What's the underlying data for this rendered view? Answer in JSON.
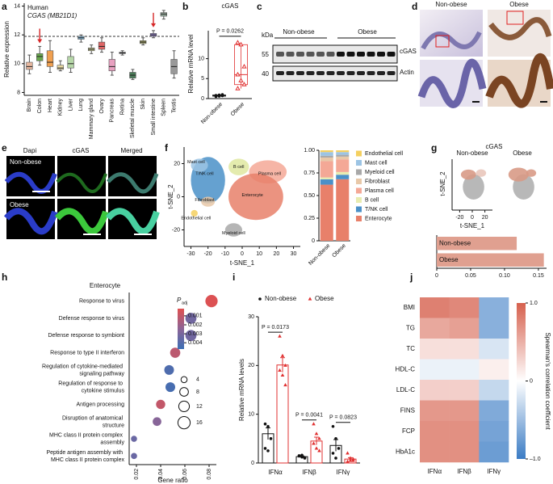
{
  "panel_labels": [
    "a",
    "b",
    "c",
    "d",
    "e",
    "f",
    "g",
    "h",
    "i",
    "j"
  ],
  "western_blot": {
    "unit": "kDa",
    "groups": [
      "Non-obese",
      "Obese"
    ],
    "markers": [
      55,
      40
    ],
    "bands": [
      "cGAS",
      "Actin"
    ]
  },
  "histology": {
    "groups": [
      "Non-obese",
      "Obese"
    ]
  },
  "immunofluorescence": {
    "channels": [
      "Dapi",
      "cGAS",
      "Merged"
    ],
    "groups": [
      "Non-obese",
      "Obese"
    ]
  },
  "chart_data": [
    {
      "type": "box",
      "title": "Human",
      "subtitle": "CGAS (MB21D1)",
      "y_label": "Relative expression",
      "categories": [
        "Brain",
        "Colon",
        "Heart",
        "Kidney",
        "Liver",
        "Lung",
        "Mammary gland",
        "Ovary",
        "Pancreas",
        "Retina",
        "Skeletal muscle",
        "Skin",
        "Small intestine",
        "Spleen",
        "Testis"
      ],
      "label_colors": [
        "#111111",
        "#d62728",
        "#111111",
        "#111111",
        "#111111",
        "#111111",
        "#111111",
        "#111111",
        "#111111",
        "#111111",
        "#111111",
        "#111111",
        "#d62728",
        "#111111",
        "#111111"
      ],
      "colors": [
        "#e8b8a0",
        "#6aa84f",
        "#f0a050",
        "#e8d8a0",
        "#b6d7a8",
        "#7fb3d5",
        "#c8c890",
        "#e06666",
        "#e8a0c0",
        "#d0d0e0",
        "#4a7c59",
        "#a0a060",
        "#8e7cc3",
        "#93a89a",
        "#999999"
      ],
      "low": [
        9.3,
        9.9,
        9.4,
        9.5,
        9.4,
        11.5,
        10.7,
        10.8,
        9.2,
        10.6,
        8.9,
        11.3,
        11.8,
        13.1,
        9.0
      ],
      "q1": [
        9.6,
        10.2,
        9.8,
        9.6,
        9.7,
        11.7,
        10.9,
        11.0,
        9.5,
        10.7,
        9.0,
        11.4,
        11.9,
        13.3,
        9.3
      ],
      "median": [
        9.8,
        10.5,
        10.1,
        9.7,
        10.0,
        11.8,
        11.0,
        11.2,
        9.8,
        10.75,
        9.2,
        11.5,
        12.0,
        13.45,
        9.8
      ],
      "q3": [
        10.1,
        10.7,
        10.9,
        9.9,
        10.5,
        11.9,
        11.1,
        11.5,
        10.3,
        10.8,
        9.4,
        11.6,
        12.1,
        13.55,
        10.3
      ],
      "high": [
        10.6,
        11.2,
        11.6,
        10.2,
        11.0,
        12.0,
        11.3,
        11.8,
        10.8,
        10.9,
        9.6,
        11.8,
        12.3,
        13.7,
        10.9
      ],
      "reference_line": 11.9,
      "ylim": [
        7.8,
        14.2
      ],
      "yticks": [
        8,
        10,
        12,
        14
      ]
    },
    {
      "type": "strip",
      "title": "cGAS",
      "y_label": "Relative mRNA level",
      "categories": [
        "Non-obese",
        "Obese"
      ],
      "colors": [
        "#111111",
        "#e03030"
      ],
      "points": [
        [
          0.5,
          0.6,
          0.7,
          0.8,
          0.9,
          1.0
        ],
        [
          14,
          13.5,
          8,
          6,
          4.5,
          3.5,
          2.5
        ]
      ],
      "low": [
        0.5,
        2.5
      ],
      "q1": [
        0.6,
        3.5
      ],
      "median": [
        0.75,
        6
      ],
      "q3": [
        0.9,
        13.5
      ],
      "high": [
        1.0,
        14
      ],
      "annotation": "P = 0.0262",
      "ylim": [
        0,
        17
      ],
      "yticks": [
        0,
        5,
        10
      ]
    },
    {
      "type": "embedding",
      "x_label": "t-SNE_1",
      "y_label": "t-SNE_2",
      "cluster_labels": [
        "Mast cell",
        "T/NK cell",
        "B cell",
        "Plasma cell",
        "Fibroblast",
        "Enterocyte",
        "Endothelial cell",
        "Myeloid cell"
      ],
      "xlim": [
        -34,
        34
      ],
      "xticks": [
        -30,
        -20,
        -10,
        0,
        10,
        20,
        30
      ],
      "ylim": [
        -30,
        30
      ],
      "yticks": [
        -20,
        0,
        20
      ]
    },
    {
      "type": "stacked_bar",
      "categories": [
        "Non-obese",
        "Obese"
      ],
      "series": [
        {
          "name": "Enterocyte",
          "color": "#e8806a",
          "values": [
            0.62,
            0.68
          ]
        },
        {
          "name": "T/NK cell",
          "color": "#4a90c8",
          "values": [
            0.06,
            0.05
          ]
        },
        {
          "name": "B cell",
          "color": "#e8ecb0",
          "values": [
            0.02,
            0.03
          ]
        },
        {
          "name": "Plasma cell",
          "color": "#f4a896",
          "values": [
            0.18,
            0.14
          ]
        },
        {
          "name": "Fibroblast",
          "color": "#e8c8a8",
          "values": [
            0.04,
            0.03
          ]
        },
        {
          "name": "Myeloid cell",
          "color": "#a8a8a8",
          "values": [
            0.02,
            0.02
          ]
        },
        {
          "name": "Mast cell",
          "color": "#9cc4e4",
          "values": [
            0.04,
            0.03
          ]
        },
        {
          "name": "Endothelial cell",
          "color": "#f4d060",
          "values": [
            0.02,
            0.02
          ]
        }
      ],
      "ylim": [
        0,
        1
      ],
      "yticks": [
        0,
        0.25,
        {
          "value": 0.5,
          "label": "0.50"
        },
        0.75,
        {
          "value": 1,
          "label": "1.00"
        }
      ]
    },
    {
      "type": "embedding_pair",
      "title": "cGAS",
      "panels": [
        "Non-obese",
        "Obese"
      ],
      "x_label": "t-SNE_1",
      "y_label": "t-SNE_2",
      "xlim": [
        -32,
        32
      ],
      "xticks": [
        -20,
        0,
        20
      ],
      "ylim": [
        -32,
        32
      ]
    },
    {
      "type": "hbar",
      "categories": [
        "Non-obese",
        "Obese"
      ],
      "values": [
        0.118,
        0.158
      ],
      "color": "#e0a090",
      "xlim": [
        0,
        0.162
      ],
      "xticks": [
        0,
        0.05,
        {
          "value": 0.1,
          "label": "0.10"
        },
        {
          "value": 0.15,
          "label": "0.15"
        }
      ]
    },
    {
      "type": "dot",
      "title": "Enterocyte",
      "x_label": "Gene ratio",
      "categories": [
        "Response to virus",
        "Defense response to virus",
        "Defense response to symbiont",
        "Response to type II interferon",
        "Regulation of cytokine-mediated signaling pathway",
        "Regulation of response to cytokine stimulus",
        "Antigen processing",
        "Disruption of anatomical structure",
        "MHC class II protein complex assembly",
        "Peptide antigen assembly with MHC class II protein complex"
      ],
      "values": [
        0.082,
        0.065,
        0.065,
        0.052,
        0.047,
        0.048,
        0.04,
        0.037,
        0.018,
        0.018
      ],
      "sizes": [
        16,
        13,
        13,
        11,
        10,
        10,
        9,
        8,
        4,
        4
      ],
      "padj": [
        0.0003,
        0.0032,
        0.0032,
        0.0012,
        0.0042,
        0.0044,
        0.001,
        0.0026,
        0.0034,
        0.0034
      ],
      "color_title": {
        "main": "P",
        "sub": "adj"
      },
      "clim": [
        0.0002,
        0.0047
      ],
      "cticks": [
        0.001,
        0.002,
        0.003,
        0.004
      ],
      "size_legend": [
        4,
        8,
        12,
        16
      ],
      "xlim": [
        0.014,
        0.086
      ],
      "xticks": [
        0.02,
        0.04,
        0.06,
        0.08
      ]
    },
    {
      "type": "grouped_bar",
      "y_label": "Relative mRNA levels",
      "categories": [
        "IFNα",
        "IFNβ",
        "IFNγ"
      ],
      "series": [
        {
          "name": "Non-obese",
          "color": "#111111",
          "marker": "circle",
          "values": [
            6.0,
            1.3,
            3.6
          ],
          "errors": [
            1.2,
            0.15,
            1.2
          ],
          "points": [
            [
              8,
              7.5,
              5,
              3,
              2.5
            ],
            [
              1.5,
              1.2,
              1.0,
              1.4,
              1.6,
              1.1
            ],
            [
              7.5,
              5,
              3,
              2,
              1
            ]
          ]
        },
        {
          "name": "Obese",
          "color": "#e03030",
          "marker": "triangle",
          "values": [
            20.1,
            4.5,
            0.8
          ],
          "errors": [
            1.5,
            0.8,
            0.3
          ],
          "points": [
            [
              26,
              22,
              20,
              19,
              18,
              16
            ],
            [
              8,
              6,
              5,
              4,
              3,
              2.5
            ],
            [
              2,
              1,
              0.5,
              0.3,
              0.5,
              0.8
            ]
          ]
        }
      ],
      "annotations": [
        "P = 0.0173",
        "P = 0.0041",
        "P = 0.0823"
      ],
      "ylim": [
        0,
        30
      ],
      "yticks": [
        0,
        10,
        20,
        30
      ]
    },
    {
      "type": "heatmap",
      "rows": [
        "BMI",
        "TG",
        "TC",
        "HDL-C",
        "LDL-C",
        "FINS",
        "FCP",
        "HbA1c"
      ],
      "columns": [
        "IFNα",
        "IFNβ",
        "IFNγ"
      ],
      "values": [
        [
          0.8,
          0.75,
          -0.6
        ],
        [
          0.55,
          0.6,
          -0.6
        ],
        [
          0.2,
          0.2,
          -0.2
        ],
        [
          -0.1,
          -0.1,
          0.1
        ],
        [
          0.3,
          0.3,
          -0.3
        ],
        [
          0.65,
          0.65,
          -0.65
        ],
        [
          0.7,
          0.7,
          -0.7
        ],
        [
          0.7,
          0.7,
          -0.75
        ]
      ],
      "colorbar_label": "Spearman's correlation coefficient",
      "clim": [
        -1,
        1
      ],
      "cticks": [
        {
          "value": 1,
          "label": "1.0"
        },
        0,
        {
          "value": -1,
          "label": "–1.0"
        }
      ]
    }
  ]
}
